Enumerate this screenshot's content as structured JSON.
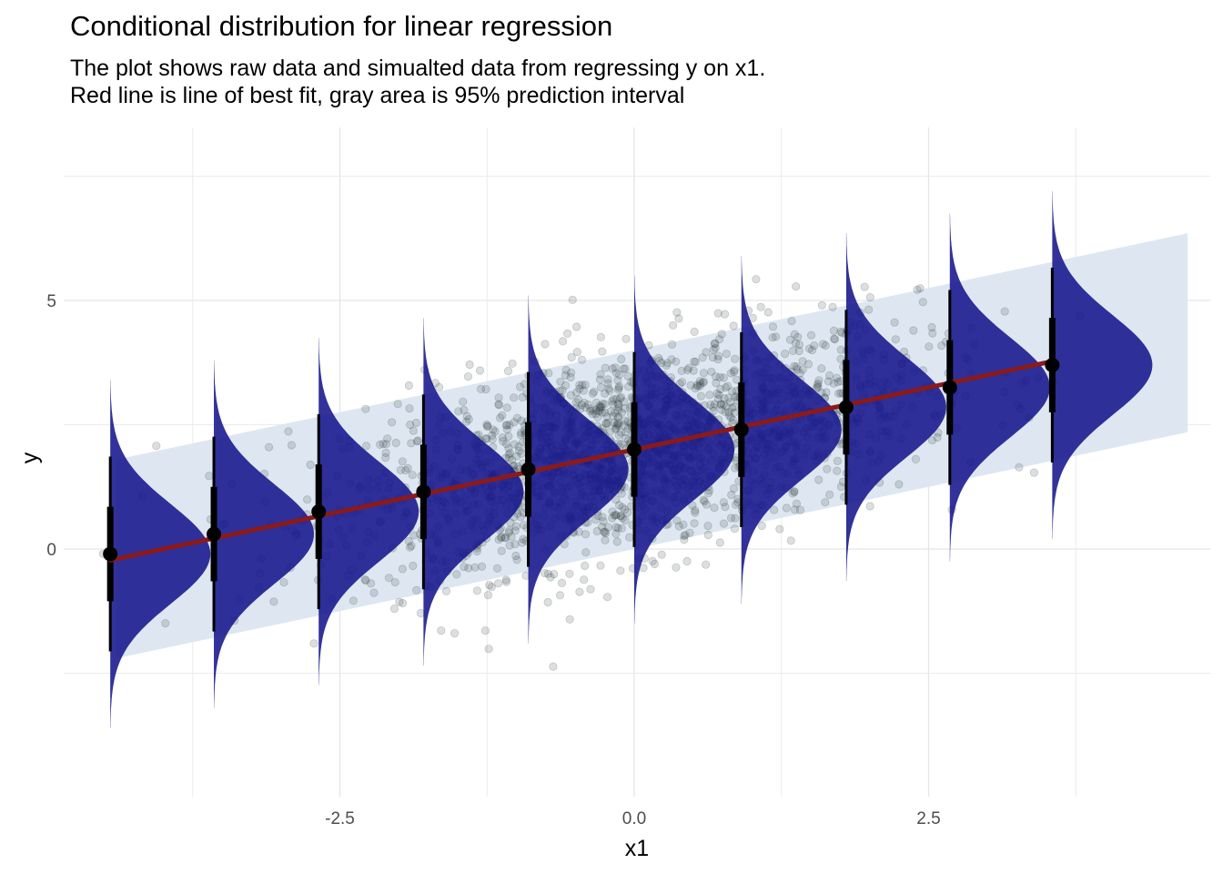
{
  "chart_data": {
    "type": "scatter",
    "title": "Conditional distribution for linear regression",
    "subtitle_lines": [
      "The plot shows raw data and simualted data from regressing y on x1.",
      "Red line is line of best fit, gray area is 95% prediction interval"
    ],
    "xlabel": "x1",
    "ylabel": "y",
    "xlim": [
      -3.5,
      3.9
    ],
    "ylim": [
      -4.8,
      7.5
    ],
    "x_ticks": [
      -2.5,
      0.0,
      2.5
    ],
    "x_tick_labels": [
      "-2.5",
      "0.0",
      "2.5"
    ],
    "y_ticks": [
      0,
      5
    ],
    "y_tick_labels": [
      "0",
      "5"
    ],
    "grid": true,
    "regression_line": {
      "intercept": 2.0,
      "slope": 0.5,
      "x_range": [
        -4.45,
        3.55
      ],
      "color": "#8b1a1a"
    },
    "prediction_interval": {
      "half_width": 2.0,
      "x_range": [
        -4.4,
        4.7
      ],
      "color": "#dce6f0"
    },
    "raw_data": {
      "n": 2000,
      "x_mean": 0.0,
      "x_sd": 1.2,
      "residual_sd": 1.0,
      "color": "#2b3a3a"
    },
    "conditional_distributions": {
      "x": [
        -4.45,
        -3.57,
        -2.68,
        -1.79,
        -0.9,
        0.0,
        0.91,
        1.8,
        2.68,
        3.55
      ],
      "mean": [
        -0.1,
        0.3,
        0.75,
        1.15,
        1.6,
        2.0,
        2.4,
        2.85,
        3.25,
        3.7
      ],
      "sd": 1.0,
      "fill_color": "#16168c",
      "interval_color": "#000000"
    }
  }
}
